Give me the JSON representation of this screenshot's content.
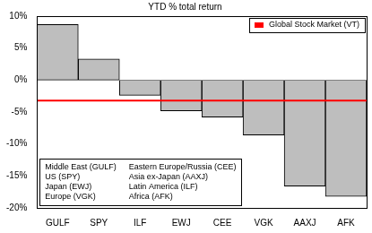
{
  "chart_data": {
    "type": "bar",
    "title": "YTD % total return",
    "categories": [
      "GULF",
      "SPY",
      "ILF",
      "EWJ",
      "CEE",
      "VGK",
      "AAXJ",
      "AFK"
    ],
    "values": [
      8.7,
      3.3,
      -2.4,
      -4.8,
      -5.8,
      -8.6,
      -16.6,
      -18.2
    ],
    "color": "#bebebe",
    "ylim": [
      -20,
      10
    ],
    "yticks": [
      {
        "value": -20,
        "label": "-20%"
      },
      {
        "value": -15,
        "label": "-15%"
      },
      {
        "value": -10,
        "label": "-10%"
      },
      {
        "value": -5,
        "label": "-5%"
      },
      {
        "value": 0,
        "label": "0%"
      },
      {
        "value": 5,
        "label": "5%"
      },
      {
        "value": 10,
        "label": "10%"
      }
    ],
    "grid": false,
    "legend": "top right",
    "reference_line": {
      "name": "Global Stock Market (VT)",
      "value": -3.2,
      "color": "#ff0000"
    },
    "annotations": [
      "Middle East (GULF)",
      "US (SPY)",
      "Japan (EWJ)",
      "Europe (VGK)",
      "Eastern Europe/Russia (CEE)",
      "Asia ex-Japan (AAXJ)",
      "Latin America (ILF)",
      "Africa (AFK)"
    ]
  }
}
